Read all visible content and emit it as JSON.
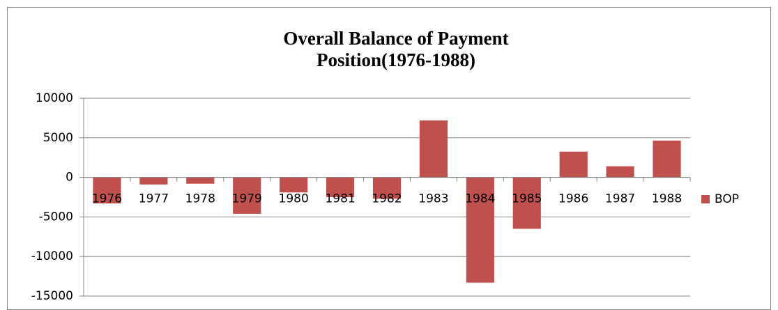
{
  "chart_data": {
    "type": "bar",
    "title": "Overall Balance of Payment Position(1976-1988)",
    "categories": [
      "1976",
      "1977",
      "1978",
      "1979",
      "1980",
      "1981",
      "1982",
      "1983",
      "1984",
      "1985",
      "1986",
      "1987",
      "1988"
    ],
    "series": [
      {
        "name": "BOP",
        "color": "#c0504d",
        "values": [
          -3300,
          -900,
          -800,
          -4600,
          -1900,
          -2500,
          -2700,
          7200,
          -13300,
          -6500,
          3250,
          1400,
          4650
        ]
      }
    ],
    "ylim": [
      -15000,
      10000
    ],
    "yticks": [
      -15000,
      -10000,
      -5000,
      0,
      5000,
      10000
    ],
    "grid": true,
    "legend": "right"
  }
}
